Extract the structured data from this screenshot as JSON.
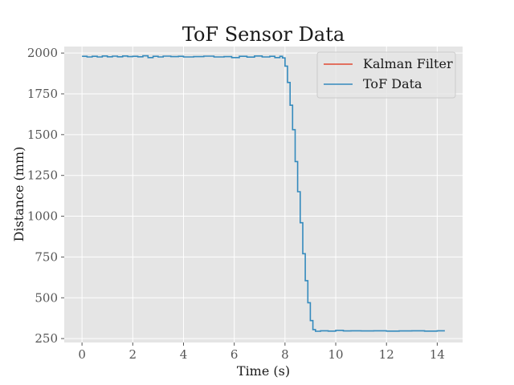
{
  "chart_data": {
    "type": "line",
    "title": "ToF Sensor Data",
    "xlabel": "Time (s)",
    "ylabel": "Distance (mm)",
    "xlim": [
      -0.7,
      15.0
    ],
    "ylim": [
      226,
      2040
    ],
    "xticks": [
      0,
      2,
      4,
      6,
      8,
      10,
      12,
      14
    ],
    "yticks": [
      250,
      500,
      750,
      1000,
      1250,
      1500,
      1750,
      2000
    ],
    "grid": true,
    "legend_position": "top-right",
    "series": [
      {
        "name": "Kalman Filter",
        "color": "#e24a33",
        "x": [],
        "y": []
      },
      {
        "name": "ToF Data",
        "color": "#348abd",
        "step": true,
        "x": [
          0.0,
          0.2,
          0.4,
          0.6,
          0.8,
          1.0,
          1.2,
          1.4,
          1.6,
          1.8,
          2.0,
          2.2,
          2.4,
          2.6,
          2.8,
          3.0,
          3.2,
          3.5,
          3.8,
          4.0,
          4.4,
          4.8,
          5.2,
          5.6,
          5.9,
          6.2,
          6.5,
          6.8,
          7.1,
          7.4,
          7.6,
          7.8,
          7.9,
          8.0,
          8.1,
          8.2,
          8.3,
          8.4,
          8.5,
          8.6,
          8.7,
          8.8,
          8.9,
          9.0,
          9.1,
          9.2,
          9.4,
          9.7,
          10.0,
          10.3,
          10.6,
          11.0,
          11.5,
          12.0,
          12.5,
          13.0,
          13.5,
          14.0,
          14.3
        ],
        "y": [
          1980,
          1976,
          1980,
          1976,
          1982,
          1977,
          1981,
          1977,
          1982,
          1978,
          1980,
          1977,
          1983,
          1972,
          1980,
          1976,
          1981,
          1978,
          1980,
          1976,
          1978,
          1981,
          1976,
          1978,
          1972,
          1980,
          1975,
          1982,
          1976,
          1980,
          1972,
          1980,
          1970,
          1920,
          1820,
          1680,
          1530,
          1335,
          1150,
          960,
          770,
          605,
          470,
          360,
          305,
          295,
          298,
          296,
          300,
          297,
          298,
          297,
          298,
          296,
          297,
          298,
          296,
          298,
          298
        ]
      }
    ]
  }
}
